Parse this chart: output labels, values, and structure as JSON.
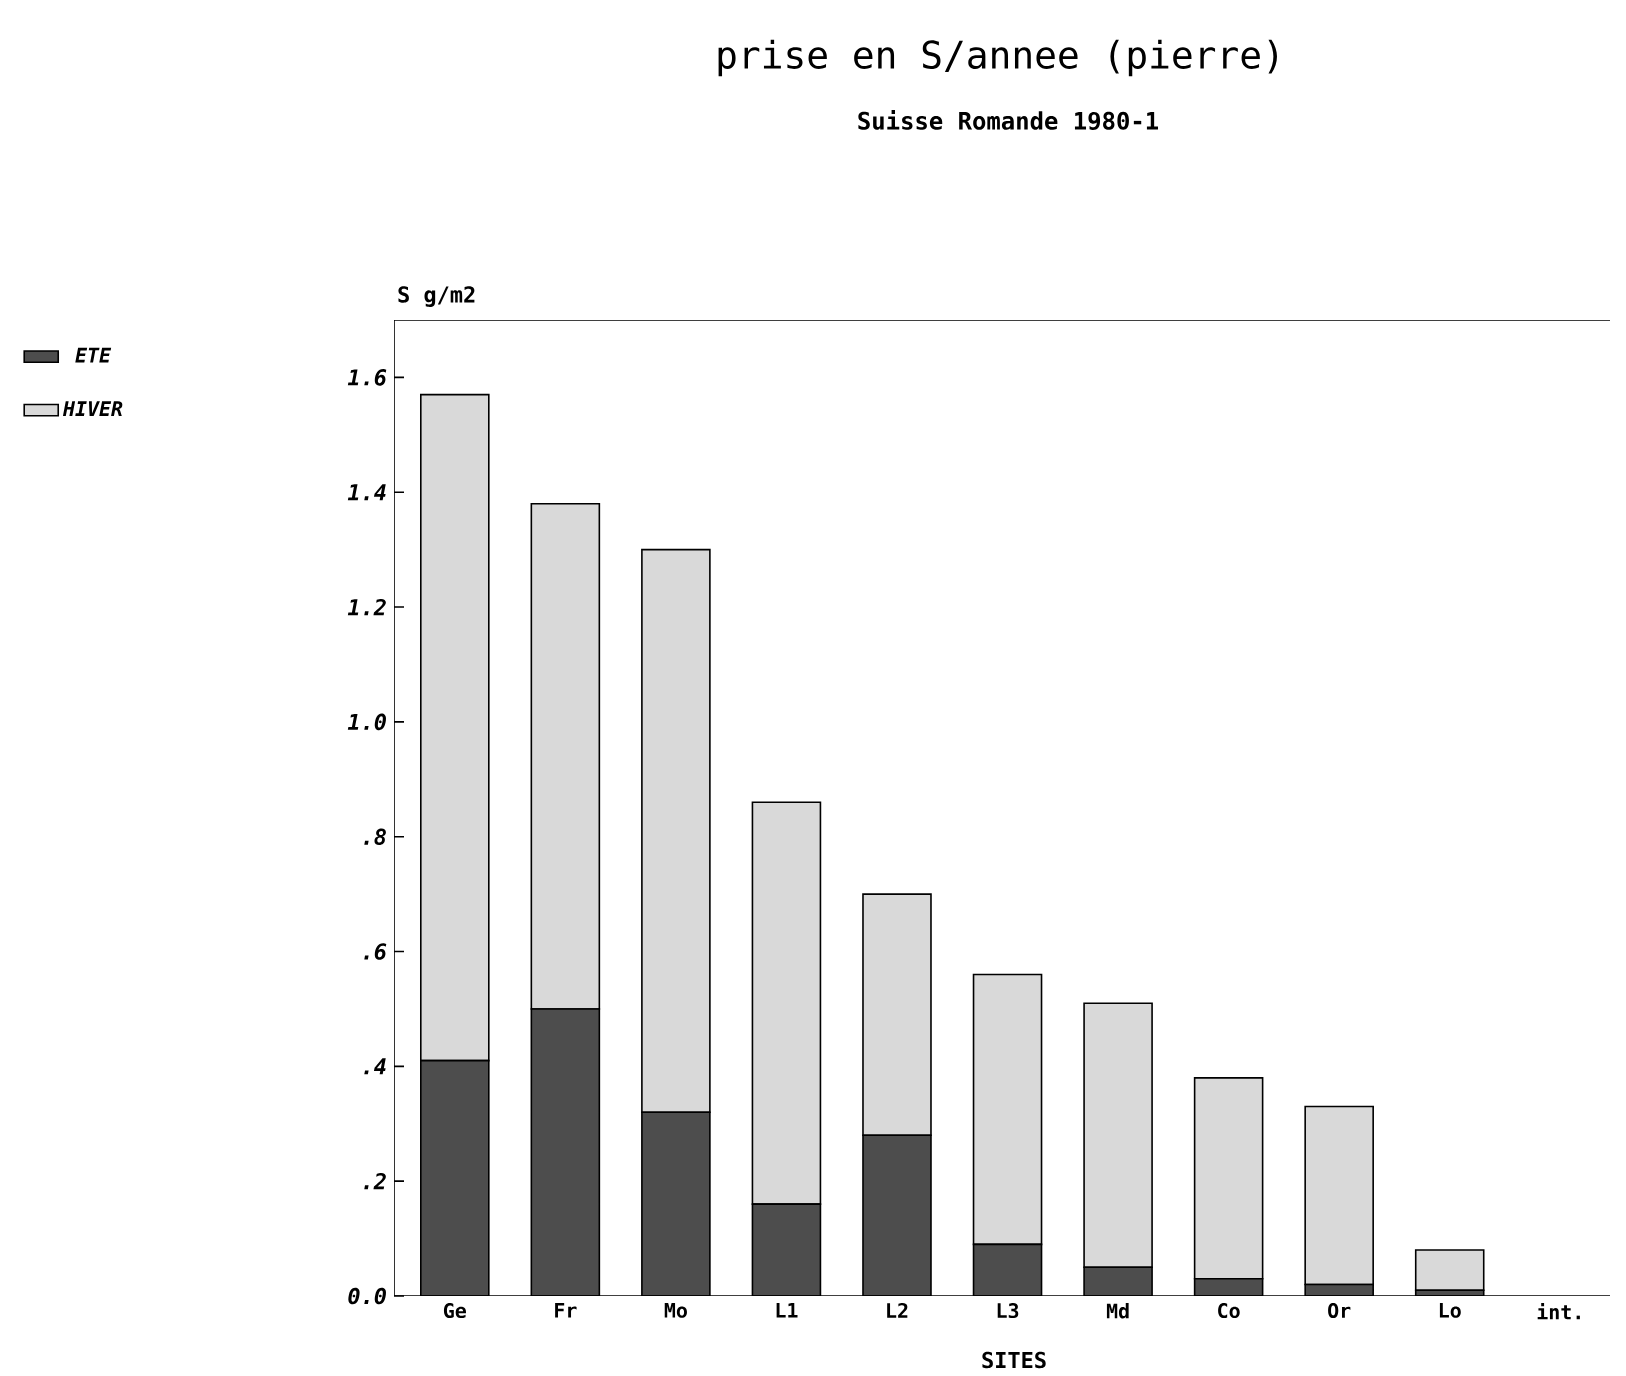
{
  "chart_data": {
    "type": "bar",
    "title": "prise en S/annee (pierre)",
    "subtitle": "Suisse Romande 1980-1",
    "xlabel": "SITES",
    "ylabel": "S g/m2",
    "categories": [
      "Ge",
      "Fr",
      "Mo",
      "L1",
      "L2",
      "L3",
      "Md",
      "Co",
      "Or",
      "Lo",
      "int."
    ],
    "stacked": true,
    "legend": "left",
    "series": [
      {
        "name": "ETE",
        "color": "#4d4d4d",
        "values": [
          0.41,
          0.5,
          0.32,
          0.16,
          0.28,
          0.09,
          0.05,
          0.03,
          0.02,
          0.01,
          0
        ]
      },
      {
        "name": "HIVER",
        "color": "#d9d9d9",
        "values": [
          1.16,
          0.88,
          0.98,
          0.7,
          0.42,
          0.47,
          0.46,
          0.35,
          0.31,
          0.07,
          null
        ]
      }
    ],
    "ylim": [
      0,
      1.7
    ],
    "yticks": [
      {
        "value": 0,
        "label": "0.0"
      },
      {
        "value": 0.2,
        "label": ".2"
      },
      {
        "value": 0.4,
        "label": ".4"
      },
      {
        "value": 0.6,
        "label": ".6"
      },
      {
        "value": 0.8,
        "label": ".8"
      },
      {
        "value": 1.0,
        "label": "1.0"
      },
      {
        "value": 1.2,
        "label": "1.2"
      },
      {
        "value": 1.4,
        "label": "1.4"
      },
      {
        "value": 1.6,
        "label": "1.6"
      }
    ]
  }
}
